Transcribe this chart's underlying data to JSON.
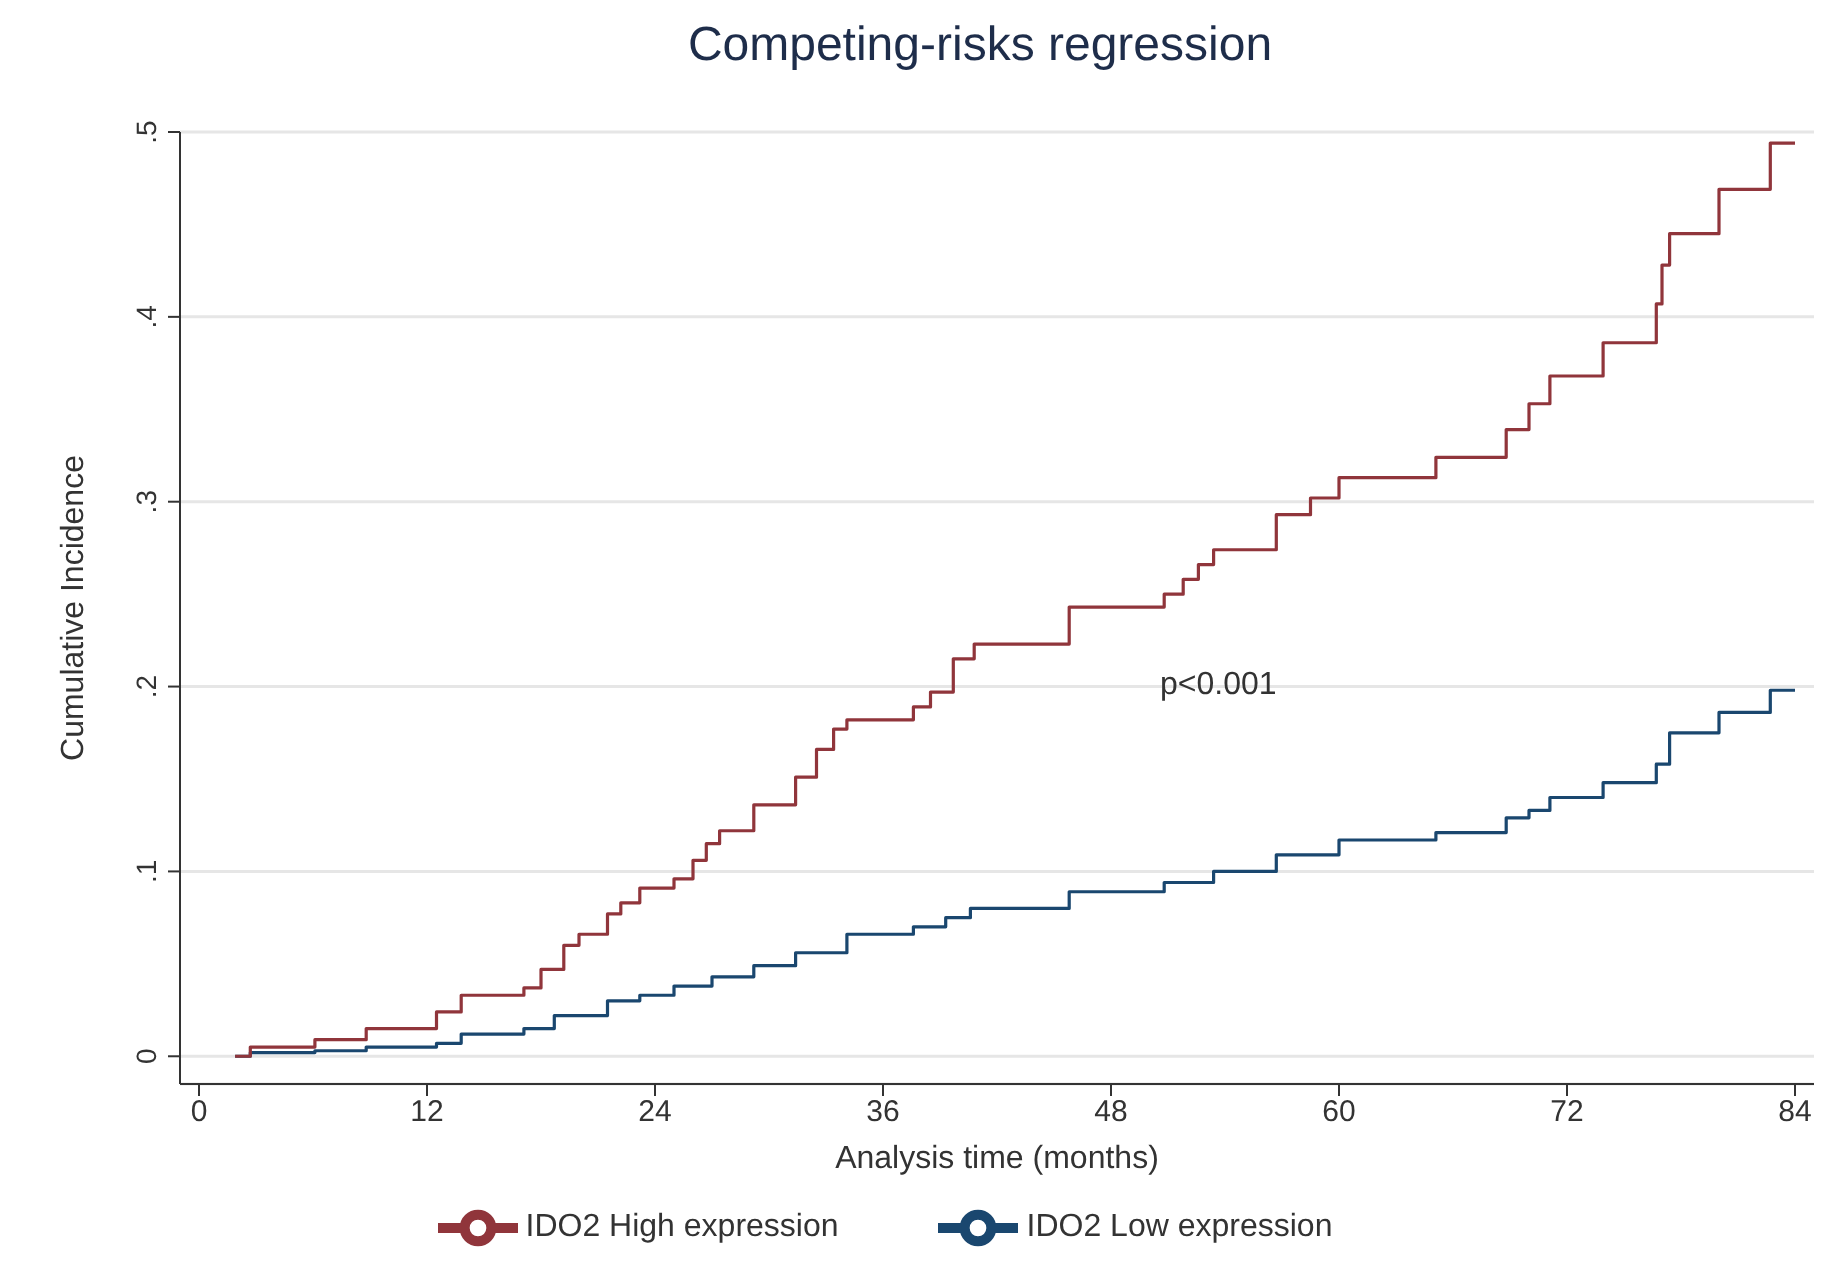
{
  "chart_data": {
    "type": "step",
    "title": "Competing-risks regression",
    "xlabel": "Analysis time (months)",
    "ylabel": "Cumulative Incidence",
    "xlim": [
      -1,
      85
    ],
    "xticks": [
      0,
      12,
      24,
      36,
      48,
      60,
      72,
      84
    ],
    "ylim": [
      -0.015,
      0.5
    ],
    "yticks": [
      {
        "value": 0,
        "label": "0"
      },
      {
        "value": 0.1,
        "label": ".1"
      },
      {
        "value": 0.2,
        "label": ".2"
      },
      {
        "value": 0.3,
        "label": ".3"
      },
      {
        "value": 0.4,
        "label": ".4"
      },
      {
        "value": 0.5,
        "label": ".5"
      }
    ],
    "grid": "y",
    "legend": "bottom",
    "marker": "none",
    "line_style": "solid",
    "annotations": [
      "p<0.001"
    ],
    "series": [
      {
        "name": "IDO2 Low expression",
        "color": "#1a476f",
        "x": [
          1.9,
          2.7,
          6.1,
          8.8,
          12.5,
          13.8,
          17.1,
          18.7,
          21.5,
          23.2,
          25,
          27,
          29.2,
          31.4,
          34.1,
          37.6,
          39.3,
          40.6,
          45.8,
          50.8,
          53.4,
          56.7,
          60,
          65.1,
          68.8,
          70,
          71.1,
          73.9,
          76.7,
          77.4,
          80,
          82.7,
          84
        ],
        "values": [
          0,
          0.002,
          0.003,
          0.005,
          0.007,
          0.012,
          0.015,
          0.022,
          0.03,
          0.033,
          0.038,
          0.043,
          0.049,
          0.056,
          0.066,
          0.07,
          0.075,
          0.08,
          0.089,
          0.094,
          0.1,
          0.109,
          0.117,
          0.121,
          0.129,
          0.133,
          0.14,
          0.148,
          0.158,
          0.175,
          0.186,
          0.198,
          0.198
        ]
      },
      {
        "name": "IDO2 High expression",
        "color": "#90353b",
        "x": [
          1.9,
          2.7,
          6.1,
          8.8,
          12.5,
          13.8,
          17.1,
          18,
          19.2,
          20,
          21.5,
          22.2,
          23.2,
          25,
          26,
          26.7,
          27.4,
          29.2,
          31.4,
          32.5,
          33.4,
          34.1,
          37.6,
          38.5,
          39.7,
          40.8,
          45.8,
          50.8,
          51.8,
          52.6,
          53.4,
          56.7,
          58.5,
          60,
          65.1,
          68.8,
          70,
          71.1,
          73.9,
          76.7,
          77,
          77.4,
          80,
          82.7,
          84
        ],
        "values": [
          0,
          0.005,
          0.009,
          0.015,
          0.024,
          0.033,
          0.037,
          0.047,
          0.06,
          0.066,
          0.077,
          0.083,
          0.091,
          0.096,
          0.106,
          0.115,
          0.122,
          0.136,
          0.151,
          0.166,
          0.177,
          0.182,
          0.189,
          0.197,
          0.215,
          0.223,
          0.243,
          0.25,
          0.258,
          0.266,
          0.274,
          0.293,
          0.302,
          0.313,
          0.324,
          0.339,
          0.353,
          0.368,
          0.386,
          0.407,
          0.428,
          0.445,
          0.469,
          0.494,
          0.494
        ]
      }
    ]
  }
}
